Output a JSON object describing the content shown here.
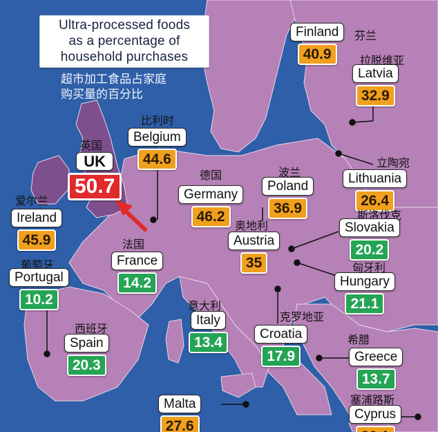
{
  "title": {
    "lines": [
      "Ultra-processed foods",
      "as a percentage of",
      "household purchases"
    ],
    "subtitle_lines": [
      "超市加工食品占家庭",
      "购买量的百分比"
    ]
  },
  "colors": {
    "sea": "#2f5fa8",
    "land": "#b681b6",
    "land_dark": "#7d4f8c",
    "border": "#e8d6ea",
    "high": "#e12a2a",
    "mid": "#f0a01e",
    "low": "#24a454"
  },
  "countries": [
    {
      "key": "finland",
      "name": "Finland",
      "cn": "芬兰",
      "value": "40.9",
      "band": "orange"
    },
    {
      "key": "latvia",
      "name": "Latvia",
      "cn": "拉脱维亚",
      "value": "32.9",
      "band": "orange"
    },
    {
      "key": "belgium",
      "name": "Belgium",
      "cn": "比利时",
      "value": "44.6",
      "band": "orange"
    },
    {
      "key": "uk",
      "name": "UK",
      "cn": "英国",
      "value": "50.7",
      "band": "red"
    },
    {
      "key": "lithuania",
      "name": "Lithuania",
      "cn": "立陶宛",
      "value": "26.4",
      "band": "orange"
    },
    {
      "key": "germany",
      "name": "Germany",
      "cn": "德国",
      "value": "46.2",
      "band": "orange"
    },
    {
      "key": "poland",
      "name": "Poland",
      "cn": "波兰",
      "value": "36.9",
      "band": "orange"
    },
    {
      "key": "ireland",
      "name": "Ireland",
      "cn": "爱尔兰",
      "value": "45.9",
      "band": "orange"
    },
    {
      "key": "slovakia",
      "name": "Slovakia",
      "cn": "斯洛伐克",
      "value": "20.2",
      "band": "green"
    },
    {
      "key": "austria",
      "name": "Austria",
      "cn": "奥地利",
      "value": "35",
      "band": "orange"
    },
    {
      "key": "france",
      "name": "France",
      "cn": "法国",
      "value": "14.2",
      "band": "green"
    },
    {
      "key": "portugal",
      "name": "Portugal",
      "cn": "葡萄牙",
      "value": "10.2",
      "band": "green"
    },
    {
      "key": "hungary",
      "name": "Hungary",
      "cn": "匈牙利",
      "value": "21.1",
      "band": "green"
    },
    {
      "key": "italy",
      "name": "Italy",
      "cn": "意大利",
      "value": "13.4",
      "band": "green"
    },
    {
      "key": "croatia",
      "name": "Croatia",
      "cn": "克罗地亚",
      "value": "17.9",
      "band": "green"
    },
    {
      "key": "spain",
      "name": "Spain",
      "cn": "西班牙",
      "value": "20.3",
      "band": "green"
    },
    {
      "key": "greece",
      "name": "Greece",
      "cn": "希腊",
      "value": "13.7",
      "band": "green"
    },
    {
      "key": "malta",
      "name": "Malta",
      "cn": "",
      "value": "27.6",
      "band": "orange"
    },
    {
      "key": "cyprus",
      "name": "Cyprus",
      "cn": "塞浦路斯",
      "value": "30.1",
      "band": "orange"
    }
  ]
}
